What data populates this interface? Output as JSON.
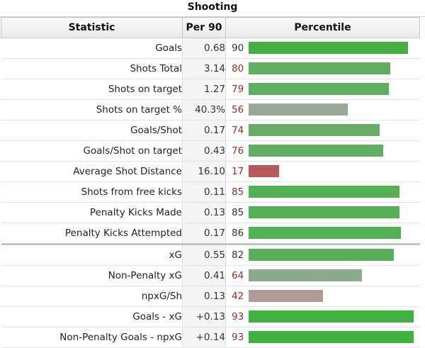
{
  "table": {
    "title": "Shooting",
    "headers": {
      "statistic": "Statistic",
      "per90": "Per 90",
      "percentile": "Percentile"
    },
    "rows": [
      {
        "stat": "Goals",
        "per90": "0.68",
        "percentile": 90,
        "bar_color": "#44b044",
        "pct_color": "dark"
      },
      {
        "stat": "Shots Total",
        "per90": "3.14",
        "percentile": 80,
        "bar_color": "#5fae5f",
        "pct_color": "red"
      },
      {
        "stat": "Shots on target",
        "per90": "1.27",
        "percentile": 79,
        "bar_color": "#5fae5f",
        "pct_color": "red"
      },
      {
        "stat": "Shots on target %",
        "per90": "40.3%",
        "percentile": 56,
        "bar_color": "#98a898",
        "pct_color": "red"
      },
      {
        "stat": "Goals/Shot",
        "per90": "0.17",
        "percentile": 74,
        "bar_color": "#66ad66",
        "pct_color": "red"
      },
      {
        "stat": "Goals/Shot on target",
        "per90": "0.43",
        "percentile": 76,
        "bar_color": "#64ad64",
        "pct_color": "red"
      },
      {
        "stat": "Average Shot Distance",
        "per90": "16.10",
        "percentile": 17,
        "bar_color": "#b85959",
        "pct_color": "red"
      },
      {
        "stat": "Shots from free kicks",
        "per90": "0.11",
        "percentile": 85,
        "bar_color": "#55b055",
        "pct_color": "red"
      },
      {
        "stat": "Penalty Kicks Made",
        "per90": "0.13",
        "percentile": 85,
        "bar_color": "#55b055",
        "pct_color": "dark"
      },
      {
        "stat": "Penalty Kicks Attempted",
        "per90": "0.17",
        "percentile": 86,
        "bar_color": "#52b152",
        "pct_color": "dark"
      },
      {
        "stat": "xG",
        "per90": "0.55",
        "percentile": 82,
        "bar_color": "#5aaf5a",
        "pct_color": "dark",
        "separator": true
      },
      {
        "stat": "Non-Penalty xG",
        "per90": "0.41",
        "percentile": 64,
        "bar_color": "#8aac8a",
        "pct_color": "red"
      },
      {
        "stat": "npxG/Sh",
        "per90": "0.13",
        "percentile": 42,
        "bar_color": "#b09898",
        "pct_color": "red"
      },
      {
        "stat": "Goals - xG",
        "per90": "+0.13",
        "percentile": 93,
        "bar_color": "#3fb33f",
        "pct_color": "red"
      },
      {
        "stat": "Non-Penalty Goals - npxG",
        "per90": "+0.14",
        "percentile": 93,
        "bar_color": "#3fb33f",
        "pct_color": "red"
      }
    ]
  }
}
